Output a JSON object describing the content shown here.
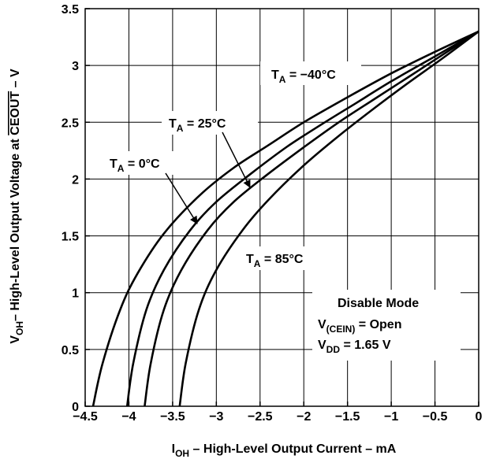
{
  "chart_data": {
    "type": "line",
    "xlabel": "I",
    "xlabel_sub": "OH",
    "xlabel_rest": " – High-Level Output Current – mA",
    "ylabel": "V",
    "ylabel_sub": "OH",
    "ylabel_mid": "– High-Level Output Voltage at ",
    "ylabel_over": "CEOUT",
    "ylabel_end": " – V",
    "xlim": [
      -4.5,
      0
    ],
    "ylim": [
      0,
      3.5
    ],
    "x_ticks": [
      -4.5,
      -4,
      -3.5,
      -3,
      -2.5,
      -2,
      -1.5,
      -1,
      -0.5,
      0
    ],
    "x_tick_labels": [
      "−4.5",
      "−4",
      "−3.5",
      "−3",
      "−2.5",
      "−2",
      "−1.5",
      "−1",
      "−0.5",
      "0"
    ],
    "y_ticks": [
      0,
      0.5,
      1,
      1.5,
      2,
      2.5,
      3,
      3.5
    ],
    "y_tick_labels": [
      "0",
      "0.5",
      "1",
      "1.5",
      "2",
      "2.5",
      "3",
      "3.5"
    ],
    "grid": true,
    "series": [
      {
        "name": "T_A = −40°C",
        "label_main": "T",
        "label_sub": "A",
        "label_rest": " = −40°C",
        "x": [
          -4.41,
          -4.3,
          -4.1,
          -3.9,
          -3.6,
          -3.2,
          -2.8,
          -2.4,
          -2.0,
          -1.5,
          -1.0,
          -0.5,
          0
        ],
        "y": [
          0,
          0.38,
          0.85,
          1.17,
          1.52,
          1.85,
          2.1,
          2.3,
          2.5,
          2.72,
          2.93,
          3.12,
          3.3
        ]
      },
      {
        "name": "T_A = 25°C",
        "label_main": "T",
        "label_sub": "A",
        "label_rest": " = 25°C",
        "x": [
          -4.02,
          -3.95,
          -3.8,
          -3.6,
          -3.3,
          -3.0,
          -2.6,
          -2.2,
          -1.8,
          -1.4,
          -1.0,
          -0.5,
          0
        ],
        "y": [
          0,
          0.38,
          0.85,
          1.2,
          1.55,
          1.8,
          2.05,
          2.28,
          2.48,
          2.67,
          2.86,
          3.08,
          3.3
        ]
      },
      {
        "name": "T_A = 0°C",
        "label_main": "T",
        "label_sub": "A",
        "label_rest": " = 0°C",
        "x": [
          -3.82,
          -3.75,
          -3.6,
          -3.4,
          -3.1,
          -2.8,
          -2.4,
          -2.0,
          -1.6,
          -1.2,
          -0.8,
          -0.4,
          0
        ],
        "y": [
          0,
          0.38,
          0.85,
          1.2,
          1.55,
          1.8,
          2.05,
          2.28,
          2.5,
          2.7,
          2.9,
          3.1,
          3.3
        ]
      },
      {
        "name": "T_A = 85°C",
        "label_main": "T",
        "label_sub": "A",
        "label_rest": " = 85°C",
        "x": [
          -3.42,
          -3.35,
          -3.2,
          -3.0,
          -2.7,
          -2.4,
          -2.0,
          -1.6,
          -1.2,
          -0.8,
          -0.4,
          0
        ],
        "y": [
          0,
          0.38,
          0.85,
          1.2,
          1.55,
          1.82,
          2.12,
          2.38,
          2.62,
          2.85,
          3.07,
          3.3
        ]
      }
    ],
    "annotations": {
      "mode": "Disable Mode",
      "cond1_main": "V",
      "cond1_sub": "(CEIN)",
      "cond1_rest": " = Open",
      "cond2_main": "V",
      "cond2_sub": "DD",
      "cond2_rest": " = 1.65 V"
    }
  }
}
